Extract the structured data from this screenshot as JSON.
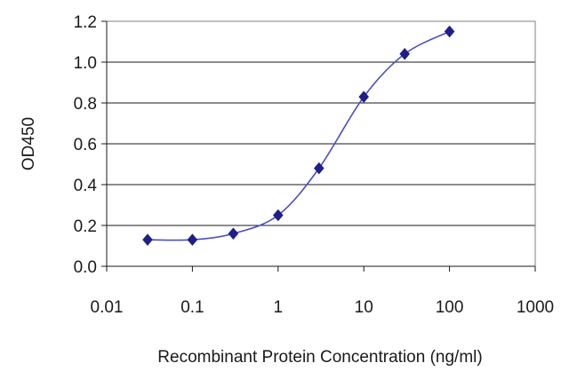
{
  "chart_data": {
    "type": "scatter",
    "x_scale": "log",
    "xlim": [
      0.01,
      1000
    ],
    "ylim": [
      0.0,
      1.2
    ],
    "x_ticks": [
      0.01,
      0.1,
      1,
      10,
      100,
      1000
    ],
    "x_tick_labels": [
      "0.01",
      "0.1",
      "1",
      "10",
      "100",
      "1000"
    ],
    "y_ticks": [
      0.0,
      0.2,
      0.4,
      0.6,
      0.8,
      1.0,
      1.2
    ],
    "y_tick_labels": [
      "0.0",
      "0.2",
      "0.4",
      "0.6",
      "0.8",
      "1.0",
      "1.2"
    ],
    "xlabel": "Recombinant Protein Concentration (ng/ml)",
    "ylabel": "OD450",
    "grid": "horizontal",
    "marker": "diamond",
    "connected": true,
    "series": [
      {
        "x": [
          0.03,
          0.1,
          0.3,
          1,
          3,
          10,
          30,
          100
        ],
        "y": [
          0.13,
          0.13,
          0.16,
          0.25,
          0.48,
          0.83,
          1.04,
          1.15
        ]
      }
    ],
    "colors": {
      "line": "#4a4ec8",
      "marker": "#1f1f8a",
      "grid": "#1a1a1a",
      "plot_border": "#808080",
      "axis": "#1a1a1a"
    }
  }
}
